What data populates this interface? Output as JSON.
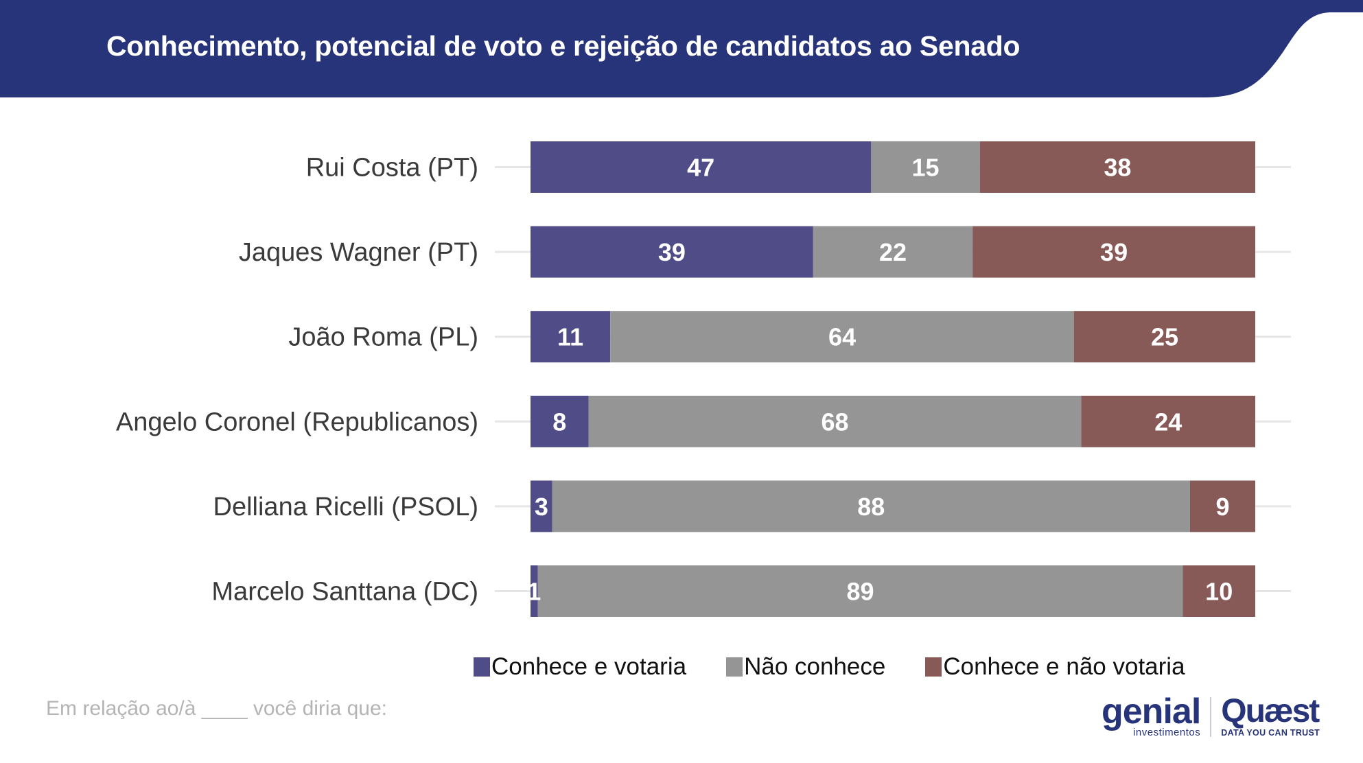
{
  "header": {
    "title": "Conhecimento, potencial de voto e rejeição de candidatos ao Senado",
    "background_color": "#27347a"
  },
  "chart_data": {
    "type": "bar",
    "orientation": "horizontal",
    "stacked": true,
    "title": "Conhecimento, potencial de voto e rejeição de candidatos ao Senado",
    "xlabel": "",
    "ylabel": "",
    "xlim": [
      0,
      100
    ],
    "grid": false,
    "legend_position": "bottom",
    "categories": [
      "Rui Costa (PT)",
      "Jaques Wagner (PT)",
      "João Roma (PL)",
      "Angelo Coronel (Republicanos)",
      "Delliana Ricelli (PSOL)",
      "Marcelo Santtana (DC)"
    ],
    "series": [
      {
        "name": "Conhece e votaria",
        "color": "#4f4c87",
        "values": [
          47,
          39,
          11,
          8,
          3,
          1
        ]
      },
      {
        "name": "Não conhece",
        "color": "#959595",
        "values": [
          15,
          22,
          64,
          68,
          88,
          89
        ]
      },
      {
        "name": "Conhece e não votaria",
        "color": "#875a57",
        "values": [
          38,
          39,
          25,
          24,
          9,
          10
        ]
      }
    ]
  },
  "footnote": "Em relação ao/à ____ você diria que:",
  "logos": {
    "genial": {
      "word": "genial",
      "sub": "investimentos"
    },
    "quaest": {
      "word": "Quæst",
      "sub": "DATA YOU CAN TRUST"
    }
  }
}
